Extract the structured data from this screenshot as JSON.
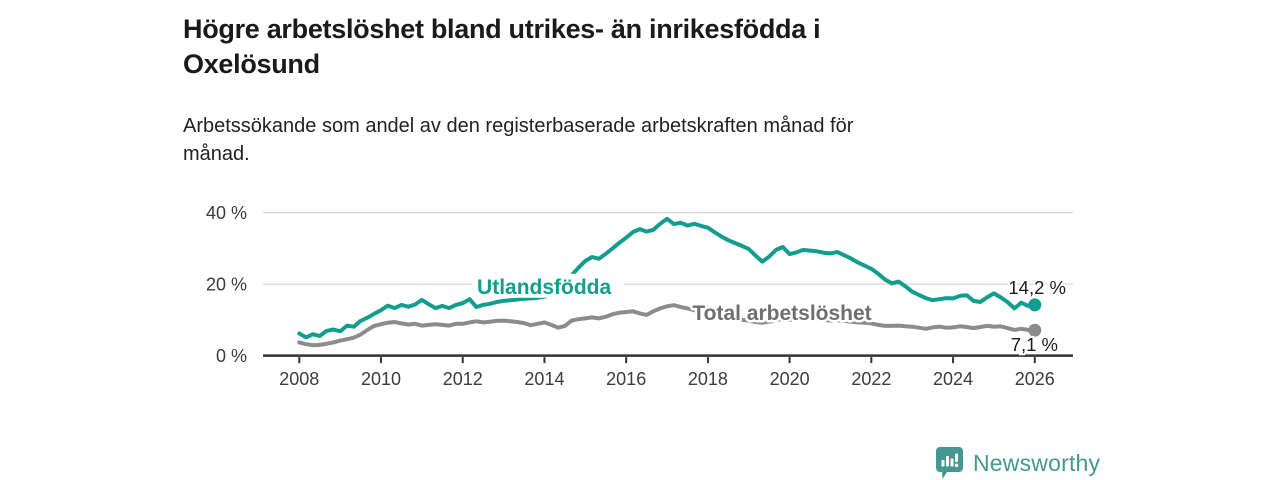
{
  "header": {
    "title_lines": [
      "Högre arbetslöshet bland utrikes- än inrikesfödda i",
      "Oxelösund"
    ],
    "subtitle_lines": [
      "Arbetssökande som andel av den registerbaserade arbetskraften månad för",
      "månad."
    ]
  },
  "chart_data": {
    "type": "line",
    "title": "Högre arbetslöshet bland utrikes- än inrikesfödda i Oxelösund",
    "subtitle": "Arbetssökande som andel av den registerbaserade arbetskraften månad för månad.",
    "xlabel": "",
    "ylabel": "",
    "x_unit": "year",
    "x_start": 2008,
    "x_step_years": 0.166667,
    "x_end": 2026,
    "x_ticks": [
      2008,
      2010,
      2012,
      2014,
      2016,
      2018,
      2020,
      2022,
      2024,
      2026
    ],
    "y_ticks": [
      0,
      20,
      40
    ],
    "y_tick_suffix": " %",
    "ylim": [
      0,
      42
    ],
    "grid": "horizontal",
    "legend_position": "inline-labels",
    "series": [
      {
        "name": "Utlandsfödda",
        "label": "Utlandsfödda",
        "color": "#129e8f",
        "label_color": "#129e8f",
        "label_x": 2012.35,
        "label_y": 17.3,
        "end_label": "14,2 %",
        "end_value": 14.2,
        "values": [
          6.2,
          5.1,
          6.0,
          5.5,
          6.9,
          7.3,
          6.8,
          8.4,
          8.1,
          9.7,
          10.6,
          11.7,
          12.7,
          14.0,
          13.3,
          14.2,
          13.7,
          14.3,
          15.6,
          14.4,
          13.3,
          13.9,
          13.3,
          14.2,
          14.7,
          15.8,
          13.6,
          14.2,
          14.5,
          15.0,
          15.3,
          15.5,
          15.7,
          15.9,
          16.0,
          16.2,
          16.5,
          17.0,
          17.8,
          19.5,
          22.5,
          24.6,
          26.5,
          27.6,
          27.1,
          28.5,
          30.0,
          31.6,
          33.0,
          34.6,
          35.4,
          34.7,
          35.2,
          36.9,
          38.3,
          36.8,
          37.2,
          36.4,
          36.9,
          36.3,
          35.8,
          34.5,
          33.3,
          32.3,
          31.5,
          30.7,
          29.8,
          28.0,
          26.3,
          27.7,
          29.6,
          30.4,
          28.4,
          28.9,
          29.6,
          29.4,
          29.2,
          28.8,
          28.6,
          29.0,
          28.1,
          27.2,
          26.1,
          25.2,
          24.3,
          22.9,
          21.3,
          20.2,
          20.7,
          19.4,
          17.9,
          17.0,
          16.1,
          15.5,
          15.8,
          16.1,
          16.0,
          16.7,
          16.9,
          15.3,
          15.0,
          16.3,
          17.4,
          16.3,
          15.0,
          13.2,
          14.8,
          13.9,
          14.2
        ]
      },
      {
        "name": "Total arbetslöshet",
        "label": "Total arbetslöshet",
        "color": "#8c8c8c",
        "label_color": "#6f6f6f",
        "label_x": 2017.62,
        "label_y": 10.0,
        "end_label": "7,1 %",
        "end_value": 7.1,
        "values": [
          3.7,
          3.2,
          2.9,
          3.0,
          3.3,
          3.7,
          4.2,
          4.6,
          5.0,
          5.9,
          7.2,
          8.3,
          8.8,
          9.2,
          9.4,
          9.0,
          8.7,
          8.9,
          8.4,
          8.6,
          8.8,
          8.6,
          8.4,
          8.9,
          8.9,
          9.3,
          9.6,
          9.3,
          9.5,
          9.7,
          9.8,
          9.6,
          9.4,
          9.1,
          8.5,
          8.9,
          9.3,
          8.6,
          7.8,
          8.3,
          9.8,
          10.2,
          10.4,
          10.7,
          10.4,
          10.9,
          11.6,
          12.0,
          12.2,
          12.4,
          11.8,
          11.4,
          12.4,
          13.2,
          13.8,
          14.1,
          13.6,
          13.2,
          12.7,
          12.1,
          11.6,
          11.2,
          10.8,
          10.5,
          10.2,
          10.0,
          9.8,
          9.4,
          9.2,
          9.5,
          9.9,
          10.2,
          10.0,
          10.2,
          10.5,
          10.4,
          10.2,
          10.0,
          9.8,
          9.9,
          9.7,
          9.5,
          9.3,
          9.2,
          9.0,
          8.6,
          8.3,
          8.3,
          8.4,
          8.2,
          8.1,
          7.8,
          7.5,
          7.9,
          8.1,
          7.8,
          7.9,
          8.2,
          8.0,
          7.7,
          8.0,
          8.3,
          8.1,
          8.2,
          7.7,
          7.2,
          7.5,
          7.2,
          7.1
        ]
      }
    ]
  },
  "footer": {
    "brand": "Newsworthy"
  },
  "colors": {
    "accent_teal": "#129e8f",
    "line_gray": "#8c8c8c",
    "gridline": "#d8d8d8",
    "axis": "#333333",
    "tick_label": "#3c3c3c",
    "annotation_text": "#1d1d1d",
    "logo_teal": "#45988f"
  }
}
